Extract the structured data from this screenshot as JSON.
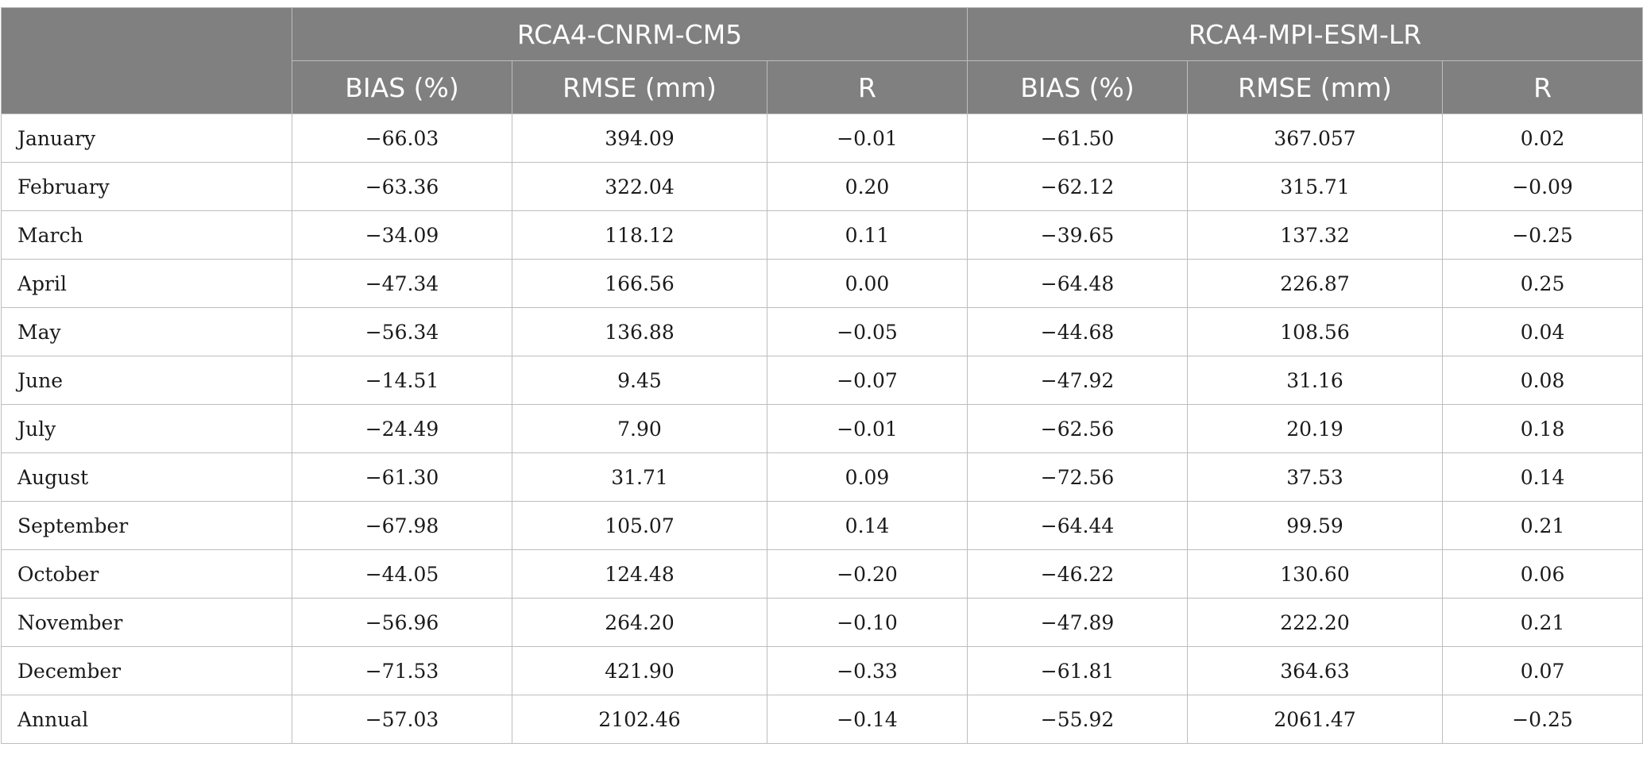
{
  "header": {
    "corner": "",
    "groups": [
      "RCA4-CNRM-CM5",
      "RCA4-MPI-ESM-LR"
    ],
    "subcolumns": [
      "BIAS (%)",
      "RMSE (mm)",
      "R",
      "BIAS (%)",
      "RMSE (mm)",
      "R"
    ]
  },
  "rows": [
    {
      "label": "January",
      "values": [
        "−66.03",
        "394.09",
        "−0.01",
        "−61.50",
        "367.057",
        "0.02"
      ]
    },
    {
      "label": "February",
      "values": [
        "−63.36",
        "322.04",
        "0.20",
        "−62.12",
        "315.71",
        "−0.09"
      ]
    },
    {
      "label": "March",
      "values": [
        "−34.09",
        "118.12",
        "0.11",
        "−39.65",
        "137.32",
        "−0.25"
      ]
    },
    {
      "label": "April",
      "values": [
        "−47.34",
        "166.56",
        "0.00",
        "−64.48",
        "226.87",
        "0.25"
      ]
    },
    {
      "label": "May",
      "values": [
        "−56.34",
        "136.88",
        "−0.05",
        "−44.68",
        "108.56",
        "0.04"
      ]
    },
    {
      "label": "June",
      "values": [
        "−14.51",
        "9.45",
        "−0.07",
        "−47.92",
        "31.16",
        "0.08"
      ]
    },
    {
      "label": "July",
      "values": [
        "−24.49",
        "7.90",
        "−0.01",
        "−62.56",
        "20.19",
        "0.18"
      ]
    },
    {
      "label": "August",
      "values": [
        "−61.30",
        "31.71",
        "0.09",
        "−72.56",
        "37.53",
        "0.14"
      ]
    },
    {
      "label": "September",
      "values": [
        "−67.98",
        "105.07",
        "0.14",
        "−64.44",
        "99.59",
        "0.21"
      ]
    },
    {
      "label": "October",
      "values": [
        "−44.05",
        "124.48",
        "−0.20",
        "−46.22",
        "130.60",
        "0.06"
      ]
    },
    {
      "label": "November",
      "values": [
        "−56.96",
        "264.20",
        "−0.10",
        "−47.89",
        "222.20",
        "0.21"
      ]
    },
    {
      "label": "December",
      "values": [
        "−71.53",
        "421.90",
        "−0.33",
        "−61.81",
        "364.63",
        "0.07"
      ]
    },
    {
      "label": "Annual",
      "values": [
        "−57.03",
        "2102.46",
        "−0.14",
        "−55.92",
        "2061.47",
        "−0.25"
      ]
    }
  ],
  "colors": {
    "header_bg": "#808080",
    "header_text": "#ffffff",
    "border": "#bdbdbd",
    "body_text": "#1a1a1a"
  }
}
